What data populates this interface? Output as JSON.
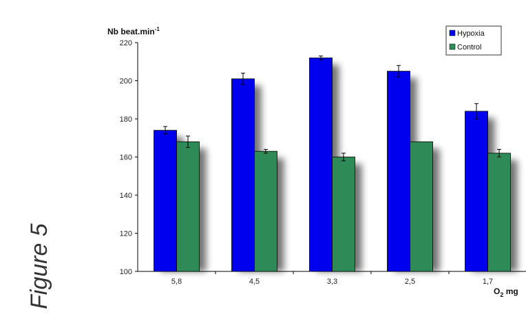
{
  "figure_label": "Figure 5",
  "chart_data": {
    "type": "bar",
    "categories": [
      "5,8",
      "4,5",
      "3,3",
      "2,5",
      "1,7"
    ],
    "series": [
      {
        "name": "Hypoxia",
        "values": [
          174,
          201,
          212,
          205,
          184
        ],
        "errors": [
          2,
          3,
          1,
          3,
          4
        ],
        "color": "#0000ee"
      },
      {
        "name": "Control",
        "values": [
          168,
          163,
          160,
          168,
          162
        ],
        "errors": [
          3,
          1,
          2,
          0,
          2
        ],
        "color": "#2e8b57"
      }
    ],
    "ylim": [
      100,
      220
    ],
    "yticks": [
      100,
      120,
      140,
      160,
      180,
      200,
      220
    ],
    "ylabel_main": "Nb beat.min",
    "ylabel_sup": "-1",
    "xlabel_main": "O",
    "xlabel_sub": "2",
    "xlabel_rest": " mg",
    "legend_position": "top-right"
  }
}
